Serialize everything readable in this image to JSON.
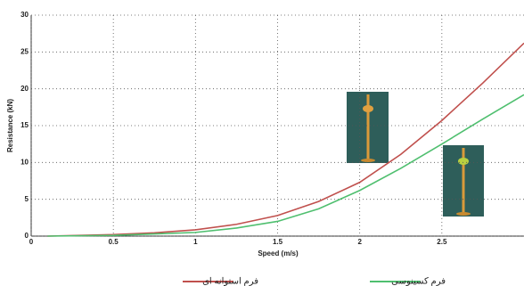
{
  "chart_data": {
    "type": "line",
    "x_label": "Speed (m/s)",
    "y_label": "Resistance (kN)",
    "x": [
      0.1,
      0.5,
      0.75,
      1,
      1.25,
      1.5,
      1.75,
      2,
      2.25,
      2.5,
      2.75,
      3
    ],
    "series": [
      {
        "name": "فرم استوانه ای",
        "color": "#c0504d",
        "values": [
          0,
          0.2,
          0.45,
          0.85,
          1.6,
          2.8,
          4.7,
          7.3,
          11.1,
          15.7,
          20.8,
          26.2
        ]
      },
      {
        "name": "فرم کسینوسی",
        "color": "#4fbf6f",
        "values": [
          0,
          0.1,
          0.3,
          0.5,
          1.1,
          2.0,
          3.7,
          6.2,
          9.2,
          12.5,
          15.9,
          19.2
        ]
      }
    ],
    "xlim": [
      0,
      3
    ],
    "xticks": [
      0,
      0.5,
      1,
      1.5,
      2,
      2.5
    ],
    "ylim": [
      0,
      30
    ],
    "yticks": [
      0,
      5,
      10,
      15,
      20,
      25,
      30
    ],
    "grid": true
  }
}
